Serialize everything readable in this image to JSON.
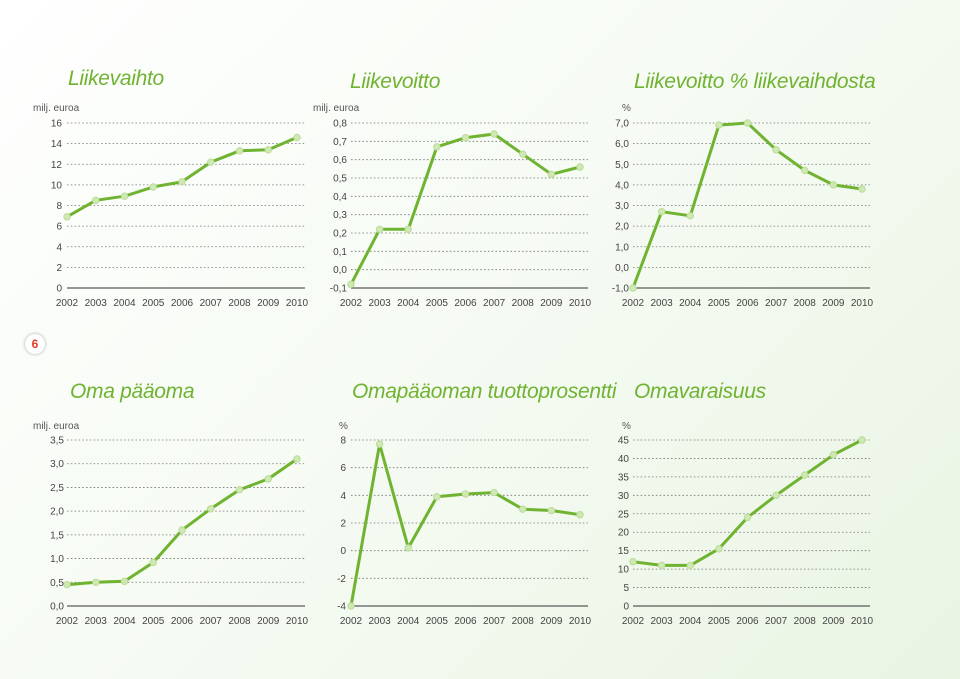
{
  "page_number": "6",
  "chart_data": [
    {
      "type": "line",
      "title": "Liikevaihto",
      "unit": "milj. euroa",
      "categories": [
        "2002",
        "2003",
        "2004",
        "2005",
        "2006",
        "2007",
        "2008",
        "2009",
        "2010"
      ],
      "values": [
        6.9,
        8.5,
        8.9,
        9.8,
        10.3,
        12.2,
        13.3,
        13.4,
        14.6
      ],
      "ylim": [
        0,
        16
      ],
      "yticks": [
        "0",
        "2",
        "4",
        "6",
        "8",
        "10",
        "12",
        "14",
        "16"
      ],
      "grid": true,
      "color": "#6fb331"
    },
    {
      "type": "line",
      "title": "Liikevoitto",
      "unit": "milj. euroa",
      "categories": [
        "2002",
        "2003",
        "2004",
        "2005",
        "2006",
        "2007",
        "2008",
        "2009",
        "2010"
      ],
      "values": [
        -0.08,
        0.22,
        0.22,
        0.67,
        0.72,
        0.74,
        0.63,
        0.52,
        0.56
      ],
      "ylim": [
        -0.1,
        0.8
      ],
      "yticks": [
        "-0,1",
        "0,0",
        "0,1",
        "0,2",
        "0,3",
        "0,4",
        "0,5",
        "0,6",
        "0,7",
        "0,8"
      ],
      "grid": true,
      "color": "#6fb331"
    },
    {
      "type": "line",
      "title": "Liikevoitto % liikevaihdosta",
      "unit": "%",
      "categories": [
        "2002",
        "2003",
        "2004",
        "2005",
        "2006",
        "2007",
        "2008",
        "2009",
        "2010"
      ],
      "values": [
        -1.0,
        2.7,
        2.5,
        6.9,
        7.0,
        5.7,
        4.7,
        4.0,
        3.8
      ],
      "ylim": [
        -1,
        7
      ],
      "yticks": [
        "-1,0",
        "0,0",
        "1,0",
        "2,0",
        "3,0",
        "4,0",
        "5,0",
        "6,0",
        "7,0"
      ],
      "grid": true,
      "color": "#6fb331"
    },
    {
      "type": "line",
      "title": "Oma pääoma",
      "unit": "milj. euroa",
      "categories": [
        "2002",
        "2003",
        "2004",
        "2005",
        "2006",
        "2007",
        "2008",
        "2009",
        "2010"
      ],
      "values": [
        0.45,
        0.5,
        0.52,
        0.92,
        1.6,
        2.05,
        2.45,
        2.68,
        3.1
      ],
      "ylim": [
        0,
        3.5
      ],
      "yticks": [
        "0,0",
        "0,5",
        "1,0",
        "1,5",
        "2,0",
        "2,5",
        "3,0",
        "3,5"
      ],
      "grid": true,
      "color": "#6fb331"
    },
    {
      "type": "line",
      "title": "Omapääoman tuottoprosentti",
      "unit": "%",
      "categories": [
        "2002",
        "2003",
        "2004",
        "2005",
        "2006",
        "2007",
        "2008",
        "2009",
        "2010"
      ],
      "values": [
        -4.0,
        7.7,
        0.2,
        3.9,
        4.1,
        4.2,
        3.0,
        2.9,
        2.6
      ],
      "ylim": [
        -4,
        8
      ],
      "yticks": [
        "-4",
        "-2",
        "0",
        "2",
        "4",
        "6",
        "8"
      ],
      "grid": true,
      "color": "#6fb331"
    },
    {
      "type": "line",
      "title": "Omavaraisuus",
      "unit": "%",
      "categories": [
        "2002",
        "2003",
        "2004",
        "2005",
        "2006",
        "2007",
        "2008",
        "2009",
        "2010"
      ],
      "values": [
        12,
        11,
        11,
        15.5,
        24,
        30,
        35.5,
        41,
        45
      ],
      "ylim": [
        0,
        45
      ],
      "yticks": [
        "0",
        "5",
        "10",
        "15",
        "20",
        "25",
        "30",
        "35",
        "40",
        "45"
      ],
      "grid": true,
      "color": "#6fb331"
    }
  ]
}
